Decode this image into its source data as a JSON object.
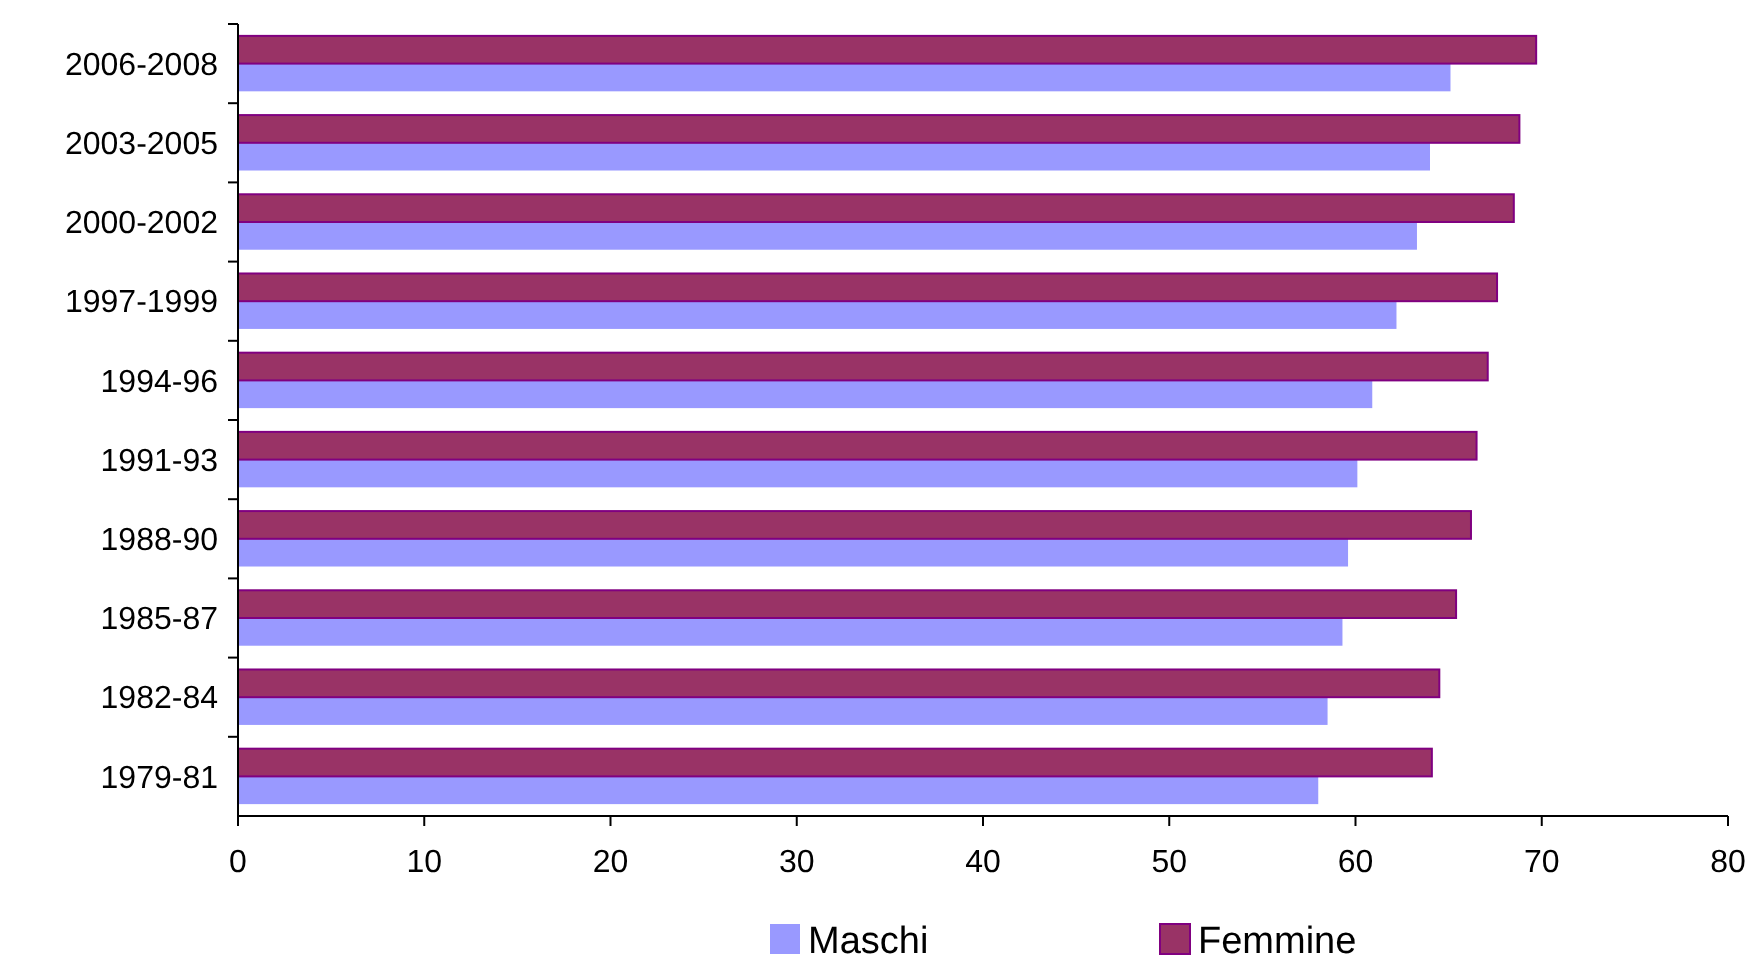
{
  "chart_data": {
    "type": "bar",
    "orientation": "horizontal",
    "categories": [
      "2006-2008",
      "2003-2005",
      "2000-2002",
      "1997-1999",
      "1994-96",
      "1991-93",
      "1988-90",
      "1985-87",
      "1982-84",
      "1979-81"
    ],
    "series": [
      {
        "name": "Maschi",
        "color": "#9999ff",
        "values": [
          65.1,
          64.0,
          63.3,
          62.2,
          60.9,
          60.1,
          59.6,
          59.3,
          58.5,
          58.0
        ]
      },
      {
        "name": "Femmine",
        "color": "#993366",
        "values": [
          69.7,
          68.8,
          68.5,
          67.6,
          67.1,
          66.5,
          66.2,
          65.4,
          64.5,
          64.1
        ]
      }
    ],
    "xlim": [
      0,
      80
    ],
    "xticks": [
      0,
      10,
      20,
      30,
      40,
      50,
      60,
      70,
      80
    ],
    "grid": false,
    "legend": "bottom"
  }
}
